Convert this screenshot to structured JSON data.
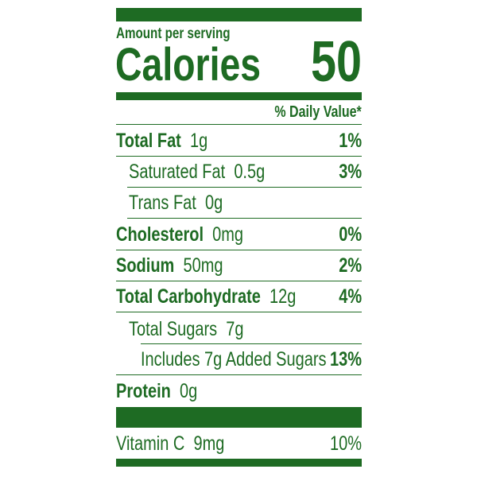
{
  "label": {
    "amount_per_serving": "Amount per serving",
    "calories_label": "Calories",
    "calories_value": "50",
    "daily_value_header": "% Daily Value*",
    "nutrients": [
      {
        "name": "Total Fat",
        "amount": "1g",
        "dv": "1%"
      },
      {
        "name": "Saturated Fat",
        "amount": "0.5g",
        "dv": "3%"
      },
      {
        "name": "Trans Fat",
        "amount": "0g",
        "dv": ""
      },
      {
        "name": "Cholesterol",
        "amount": "0mg",
        "dv": "0%"
      },
      {
        "name": "Sodium",
        "amount": "50mg",
        "dv": "2%"
      },
      {
        "name": "Total Carbohydrate",
        "amount": "12g",
        "dv": "4%"
      },
      {
        "name": "Total Sugars",
        "amount": "7g",
        "dv": ""
      },
      {
        "name": "Includes 7g Added Sugars",
        "amount": "",
        "dv": "13%"
      },
      {
        "name": "Protein",
        "amount": "0g",
        "dv": ""
      }
    ],
    "vitamins": [
      {
        "name": "Vitamin C",
        "amount": "9mg",
        "dv": "10%"
      }
    ],
    "color": "#1e6b23"
  }
}
